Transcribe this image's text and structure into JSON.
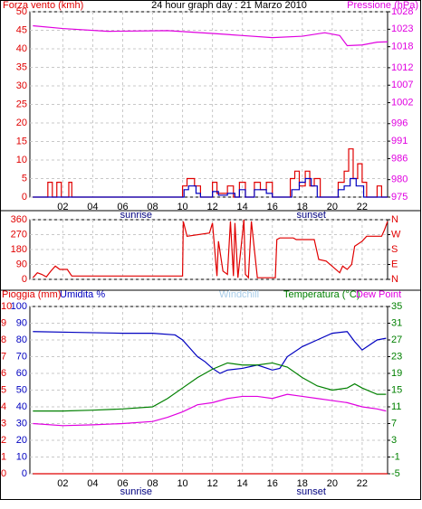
{
  "chart_data": [
    {
      "type": "line",
      "title": "24 hour graph day : 21 Marzo 2010",
      "ylabel": "Forza vento (kmh)",
      "y2label": "Pressione (hPa)",
      "ycolor": "#e00000",
      "y2color": "#e000e0",
      "grid": true,
      "xlim": [
        -0.2,
        23.7
      ],
      "xticks": [
        {
          "value": 2,
          "label": "02"
        },
        {
          "value": 4,
          "label": "04"
        },
        {
          "value": 6,
          "label": "06"
        },
        {
          "value": 8,
          "label": "08"
        },
        {
          "value": 10,
          "label": "10"
        },
        {
          "value": 12,
          "label": "12"
        },
        {
          "value": 14,
          "label": "14"
        },
        {
          "value": 16,
          "label": "16"
        },
        {
          "value": 18,
          "label": "18"
        },
        {
          "value": 20,
          "label": "20"
        },
        {
          "value": 22,
          "label": "22"
        }
      ],
      "annotations": [
        {
          "label": "sunrise",
          "x": 6.9
        },
        {
          "label": "sunset",
          "x": 18.6
        }
      ],
      "ylim": [
        0,
        50
      ],
      "yticks": [
        0,
        5,
        10,
        15,
        20,
        25,
        30,
        35,
        40,
        45,
        50
      ],
      "y2lim": [
        975,
        1028
      ],
      "y2ticks": [
        975,
        980,
        986,
        991,
        996,
        1002,
        1007,
        1012,
        1018,
        1023,
        1028
      ],
      "series": [
        {
          "color": "#e00000",
          "step": true,
          "x": [
            0,
            1,
            1.3,
            1.6,
            1.9,
            2.4,
            2.6,
            10,
            10.3,
            10.8,
            11.2,
            12,
            12.3,
            13,
            13.4,
            13.8,
            14.2,
            14.8,
            15.2,
            15.6,
            16,
            17.2,
            17.5,
            17.8,
            18.2,
            18.5,
            18.8,
            19.2,
            20.4,
            20.8,
            21.1,
            21.4,
            21.7,
            22,
            22.3,
            23,
            23.3,
            23.7
          ],
          "values": [
            0,
            4,
            0,
            4,
            0,
            4,
            0,
            3,
            5,
            3,
            0,
            4,
            1,
            3,
            0,
            4,
            0,
            4,
            2,
            4,
            0,
            5,
            7,
            3,
            7,
            3,
            5,
            0,
            4,
            7,
            13,
            5,
            9,
            4,
            0,
            3,
            0,
            0
          ]
        },
        {
          "color": "#0000c0",
          "step": true,
          "x": [
            0,
            10.1,
            10.4,
            10.9,
            11.2,
            12,
            12.4,
            13,
            13.5,
            13.8,
            14.2,
            14.8,
            15.6,
            16,
            17.3,
            17.8,
            18.2,
            18.6,
            19,
            20.4,
            20.8,
            21.2,
            21.6,
            22.1,
            23.7
          ],
          "values": [
            0,
            2,
            3,
            1,
            0,
            1.5,
            0.5,
            1,
            0,
            2,
            0,
            2,
            1,
            0,
            2,
            4,
            5,
            3,
            0,
            2,
            3,
            5,
            3,
            0,
            0
          ]
        },
        {
          "color": "#e000e0",
          "axis": "y2",
          "x": [
            0,
            2,
            5,
            9,
            12,
            14,
            16,
            18,
            19.5,
            20.5,
            21,
            22,
            23,
            23.7
          ],
          "values": [
            1024,
            1023.2,
            1022.4,
            1022.6,
            1021.8,
            1021.2,
            1020.6,
            1021,
            1022,
            1021.2,
            1018.3,
            1018.5,
            1019.3,
            1019.4
          ]
        }
      ]
    },
    {
      "type": "line",
      "ycolor": "#e00000",
      "y2color": "#e00000",
      "grid": true,
      "xlim": [
        -0.2,
        23.7
      ],
      "xticks": [
        {
          "value": 2,
          "label": "02"
        },
        {
          "value": 4,
          "label": "04"
        },
        {
          "value": 6,
          "label": "06"
        },
        {
          "value": 8,
          "label": "08"
        },
        {
          "value": 10,
          "label": "10"
        },
        {
          "value": 12,
          "label": "12"
        },
        {
          "value": 14,
          "label": "14"
        },
        {
          "value": 16,
          "label": "16"
        },
        {
          "value": 18,
          "label": "18"
        },
        {
          "value": 20,
          "label": "20"
        },
        {
          "value": 22,
          "label": "22"
        }
      ],
      "ylim": [
        0,
        360
      ],
      "yticks": [
        0,
        90,
        180,
        270,
        360
      ],
      "y2lim": [
        0,
        360
      ],
      "y2ticks": [
        {
          "value": 0,
          "label": "N"
        },
        {
          "value": 90,
          "label": "E"
        },
        {
          "value": 180,
          "label": "S"
        },
        {
          "value": 270,
          "label": "W"
        },
        {
          "value": 360,
          "label": "N"
        }
      ],
      "series": [
        {
          "color": "#e00000",
          "x": [
            0,
            0.3,
            0.6,
            0.9,
            1.2,
            1.5,
            1.8,
            2.3,
            2.6,
            10,
            10.05,
            10.3,
            11.8,
            12,
            12.3,
            12.4,
            12.7,
            13,
            13.2,
            13.4,
            13.5,
            13.7,
            14.1,
            14.2,
            14.4,
            14.6,
            15,
            16.2,
            16.3,
            16.5,
            17.4,
            17.6,
            18.8,
            19.1,
            19.6,
            20.5,
            20.7,
            21,
            21.3,
            21.5,
            22,
            22.3,
            23.3,
            23.5,
            23.7
          ],
          "values": [
            10,
            40,
            30,
            15,
            50,
            80,
            60,
            60,
            20,
            20,
            350,
            260,
            280,
            340,
            20,
            230,
            50,
            30,
            350,
            20,
            340,
            10,
            360,
            30,
            10,
            350,
            10,
            10,
            240,
            250,
            250,
            240,
            240,
            120,
            110,
            40,
            80,
            60,
            90,
            200,
            230,
            260,
            260,
            300,
            350
          ]
        }
      ]
    },
    {
      "type": "line",
      "ycolor": "#0000c0",
      "y2color": "#008000",
      "y3color": "#e00000",
      "grid": true,
      "xlim": [
        -0.2,
        23.7
      ],
      "xticks": [
        {
          "value": 2,
          "label": "02"
        },
        {
          "value": 4,
          "label": "04"
        },
        {
          "value": 6,
          "label": "06"
        },
        {
          "value": 8,
          "label": "08"
        },
        {
          "value": 10,
          "label": "10"
        },
        {
          "value": 12,
          "label": "12"
        },
        {
          "value": 14,
          "label": "14"
        },
        {
          "value": 16,
          "label": "16"
        },
        {
          "value": 18,
          "label": "18"
        },
        {
          "value": 20,
          "label": "20"
        },
        {
          "value": 22,
          "label": "22"
        }
      ],
      "annotations": [
        {
          "label": "sunrise",
          "x": 6.9
        },
        {
          "label": "sunset",
          "x": 18.6
        }
      ],
      "ylim": [
        0,
        100
      ],
      "yticks": [
        0,
        10,
        20,
        30,
        40,
        50,
        60,
        70,
        80,
        90,
        100
      ],
      "y2lim": [
        -5,
        35
      ],
      "y2ticks": [
        -5,
        -1,
        3,
        7,
        11,
        15,
        19,
        23,
        27,
        31,
        35
      ],
      "y3lim": [
        0,
        10
      ],
      "y3ticks": [
        0,
        1,
        2,
        3,
        4,
        5,
        6,
        7,
        8,
        9,
        10
      ],
      "series": [
        {
          "name": "Pioggia (mm)",
          "color": "#e00000",
          "axis": "y3",
          "x": [
            0,
            23.7
          ],
          "values": [
            0,
            0
          ]
        },
        {
          "name": "Umidita %",
          "color": "#0000c0",
          "x": [
            0,
            3,
            6,
            8,
            9.5,
            10,
            10.5,
            11,
            11.5,
            12,
            12.5,
            13,
            14,
            15,
            16,
            16.5,
            17,
            18,
            19,
            20,
            21,
            21.5,
            22,
            23,
            23.6
          ],
          "values": [
            85,
            84.5,
            84,
            84,
            83,
            80,
            75,
            70,
            67,
            63,
            60,
            62,
            63,
            65,
            62,
            63,
            70,
            76,
            80,
            84,
            85,
            79,
            74,
            80,
            81
          ]
        },
        {
          "name": "Windchill",
          "color": "#a8cce8",
          "axis": "y2",
          "x": [],
          "values": []
        },
        {
          "name": "Temperatura (°C)",
          "color": "#008000",
          "axis": "y2",
          "x": [
            0,
            2,
            4,
            6,
            8,
            9,
            10,
            11,
            12,
            13,
            14,
            15,
            16,
            17,
            18,
            19,
            20,
            21,
            21.5,
            22,
            23,
            23.6
          ],
          "values": [
            10,
            10,
            10.2,
            10.5,
            11,
            13,
            15.5,
            18,
            20,
            21.5,
            21,
            21,
            21.5,
            20.5,
            18,
            16,
            15,
            15.5,
            16.5,
            15.5,
            14,
            14
          ]
        },
        {
          "name": "Dew Point",
          "color": "#e000e0",
          "axis": "y2",
          "x": [
            0,
            2,
            4,
            6,
            8,
            9,
            10,
            11,
            12,
            13,
            14,
            15,
            16,
            17,
            18,
            19,
            20,
            21,
            22,
            23,
            23.6
          ],
          "values": [
            7,
            6.5,
            6.7,
            7,
            7.5,
            8.5,
            9.8,
            11.5,
            12,
            13,
            13.5,
            13.5,
            13,
            14,
            13.5,
            13,
            12.5,
            12,
            11,
            10.5,
            10
          ]
        }
      ]
    }
  ]
}
